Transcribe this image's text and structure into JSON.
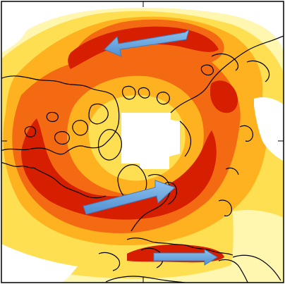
{
  "map": {
    "projection": "north-polar-stereographic",
    "palette": {
      "lightest": "#fff6b0",
      "light": "#ffdf52",
      "medium": "#ffb21f",
      "strong": "#f46a12",
      "strongest": "#d61e00",
      "background": "#ffffff",
      "polar_cap": "#ffffff",
      "coastline": "#000000"
    },
    "arrows": [
      {
        "name": "pacific-jet-arrow",
        "direction": "westward",
        "color": "#5b9bd5"
      },
      {
        "name": "atlantic-jet-arrow",
        "direction": "eastward",
        "color": "#5b9bd5"
      },
      {
        "name": "subtropical-jet-arrow",
        "direction": "eastward",
        "color": "#5b9bd5"
      }
    ]
  }
}
